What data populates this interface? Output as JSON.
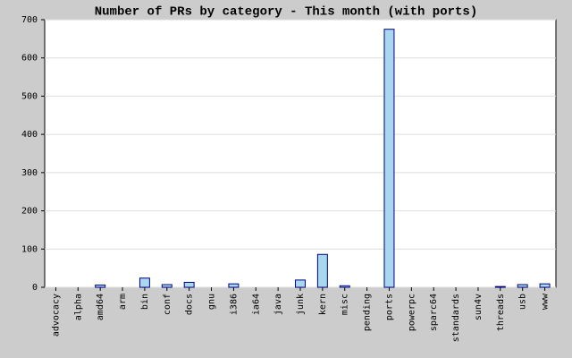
{
  "chart_data": {
    "type": "bar",
    "title": "Number of PRs by category - This month (with ports)",
    "categories": [
      "advocacy",
      "alpha",
      "amd64",
      "arm",
      "bin",
      "conf",
      "docs",
      "gnu",
      "i386",
      "ia64",
      "java",
      "junk",
      "kern",
      "misc",
      "pending",
      "ports",
      "powerpc",
      "sparc64",
      "standards",
      "sun4v",
      "threads",
      "usb",
      "www"
    ],
    "values": [
      0,
      0,
      6,
      0,
      24,
      7,
      13,
      0,
      9,
      0,
      0,
      19,
      86,
      4,
      0,
      675,
      0,
      0,
      0,
      0,
      2,
      7,
      9
    ],
    "color": "#a8d8f0",
    "ylim": [
      0,
      700
    ],
    "yticks": [
      0,
      100,
      200,
      300,
      400,
      500,
      600,
      700
    ],
    "grid": true
  }
}
